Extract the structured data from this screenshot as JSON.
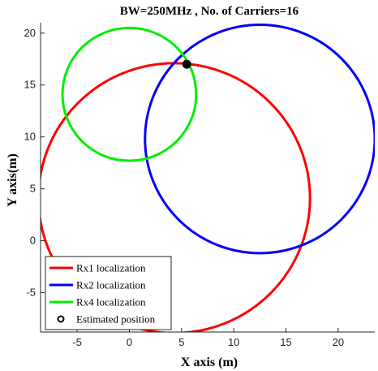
{
  "chart_data": {
    "type": "scatter",
    "title": "BW=250MHz , No. of Carriers=16",
    "xlabel": "X axis (m)",
    "ylabel": "Y axis(m)",
    "xlim": [
      -8.5,
      23.5
    ],
    "ylim": [
      -8.8,
      21.0
    ],
    "xticks": [
      -5,
      0,
      5,
      10,
      15,
      20
    ],
    "yticks": [
      -5,
      0,
      5,
      10,
      15,
      20
    ],
    "grid": false,
    "legend_position": "bottom-left",
    "series": [
      {
        "name": "Rx1 localization",
        "shape": "circle",
        "color": "#ff0000",
        "center": [
          4.3,
          4.1
        ],
        "radius": 13.0
      },
      {
        "name": "Rx2 localization",
        "shape": "circle",
        "color": "#0000ff",
        "center": [
          12.5,
          9.8
        ],
        "radius": 11.0
      },
      {
        "name": "Rx4 localization",
        "shape": "circle",
        "color": "#00ee00",
        "center": [
          0.0,
          14.1
        ],
        "radius": 6.4
      },
      {
        "name": "Estimated position",
        "shape": "point",
        "color": "#000000",
        "x": 5.5,
        "y": 17.0
      }
    ]
  }
}
